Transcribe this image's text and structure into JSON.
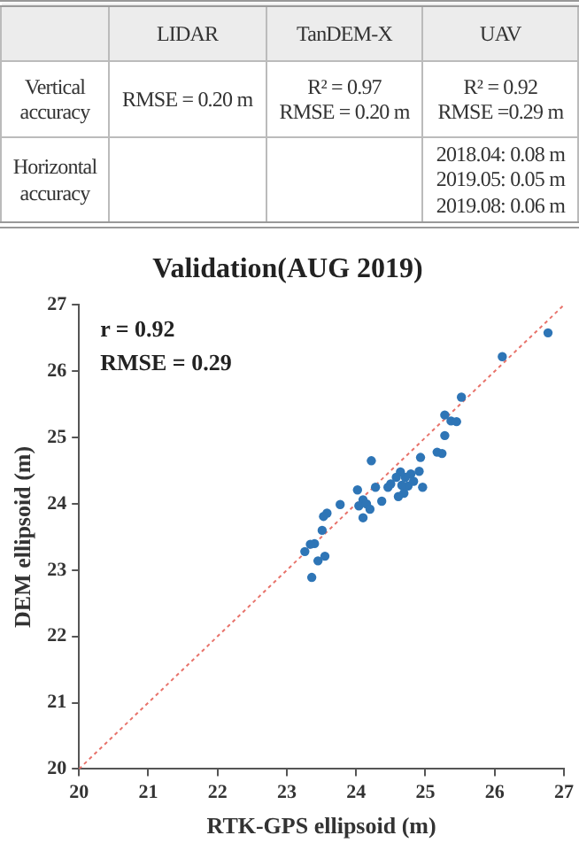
{
  "chart_data": [
    {
      "type": "other",
      "categories": [
        null,
        "LIDAR",
        "TanDEM-X",
        "UAV"
      ],
      "y_categories": [
        "Vertical accuracy",
        "Horizontal accuracy"
      ],
      "cell_labels": [
        [
          "RMSE = 0.20 m",
          "R² = 0.97\nRMSE = 0.20 m",
          "R² = 0.92\nRMSE =0.29 m"
        ],
        [
          null,
          null,
          "2018.04: 0.08 m\n2019.05: 0.05 m\n2019.08: 0.06 m"
        ]
      ]
    },
    {
      "type": "scatter",
      "title": "Validation(AUG 2019)",
      "xlabel": "RTK-GPS ellipsoid (m)",
      "ylabel": "DEM ellipsoid (m)",
      "annotations": [
        "r = 0.92",
        "RMSE = 0.29"
      ],
      "xlim": [
        20,
        27
      ],
      "xticks": [
        20,
        21,
        22,
        23,
        24,
        25,
        26,
        27
      ],
      "ylim": [
        20,
        27
      ],
      "yticks": [
        20,
        21,
        22,
        23,
        24,
        25,
        26,
        27
      ],
      "grid": false,
      "legend": false,
      "series": [
        {
          "type": "scatter",
          "color": "#2e75b6",
          "marker": "circle",
          "x": [
            26.77,
            26.11,
            25.52,
            25.28,
            25.37,
            25.45,
            25.28,
            25.17,
            25.24,
            24.93,
            24.91,
            24.79,
            24.71,
            24.22,
            24.02,
            24.28,
            24.37,
            24.1,
            24.04,
            24.1,
            23.77,
            23.58,
            23.53,
            23.51,
            23.4,
            23.26,
            23.34,
            23.45,
            23.55,
            23.36,
            24.46,
            24.64,
            24.69,
            24.61,
            24.75,
            24.83,
            24.96,
            24.5,
            24.58,
            24.66,
            24.15,
            24.2
          ],
          "values": [
            26.58,
            26.22,
            25.61,
            25.34,
            25.25,
            25.24,
            25.03,
            24.78,
            24.76,
            24.7,
            24.49,
            24.45,
            24.4,
            24.65,
            24.21,
            24.25,
            24.04,
            24.06,
            23.97,
            23.79,
            23.99,
            23.86,
            23.81,
            23.6,
            23.4,
            23.28,
            23.39,
            23.14,
            23.21,
            22.89,
            24.25,
            24.48,
            24.16,
            24.11,
            24.27,
            24.34,
            24.25,
            24.3,
            24.4,
            24.28,
            24.0,
            23.92
          ]
        },
        {
          "type": "line",
          "color": "#e8736b",
          "marker": "none",
          "line_style": "dotted",
          "x": [
            20,
            27
          ],
          "values": [
            20,
            27
          ]
        }
      ]
    }
  ]
}
